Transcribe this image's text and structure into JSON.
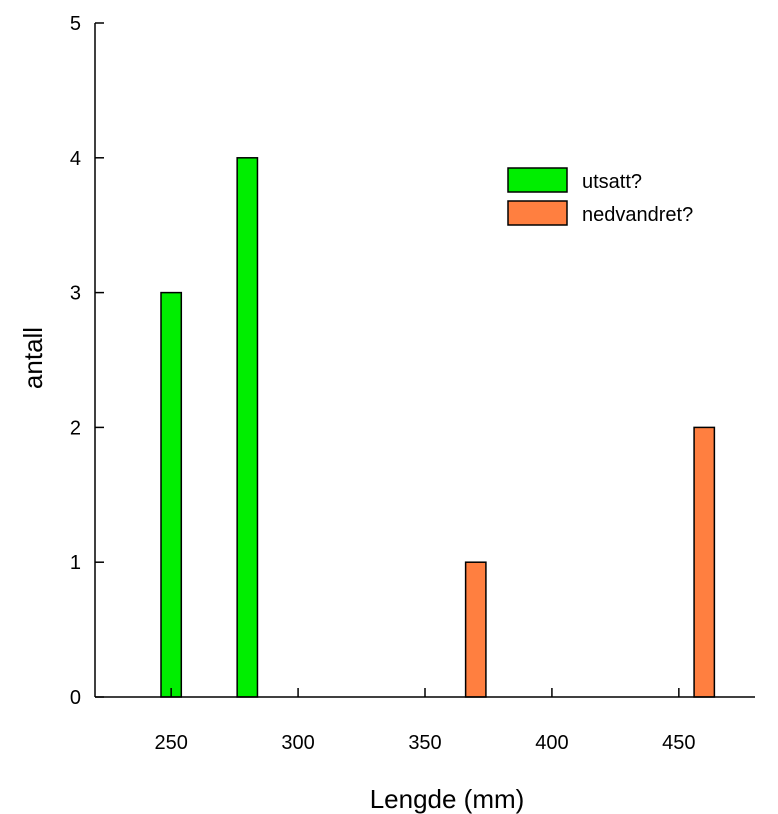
{
  "chart_data": {
    "type": "bar",
    "xlabel": "Lengde (mm)",
    "ylabel": "antall",
    "xlim": [
      220,
      480
    ],
    "ylim": [
      0,
      5
    ],
    "x_ticks": [
      250,
      300,
      350,
      400,
      450
    ],
    "y_ticks": [
      0,
      1,
      2,
      3,
      4,
      5
    ],
    "bar_width": 8,
    "grid": false,
    "legend_position": "top-right",
    "series": [
      {
        "name": "utsatt?",
        "color": "#00ee00",
        "x": [
          250,
          280
        ],
        "values": [
          3,
          4
        ]
      },
      {
        "name": "nedvandret?",
        "color": "#ff7f40",
        "x": [
          370,
          460
        ],
        "values": [
          1,
          2
        ]
      }
    ]
  }
}
